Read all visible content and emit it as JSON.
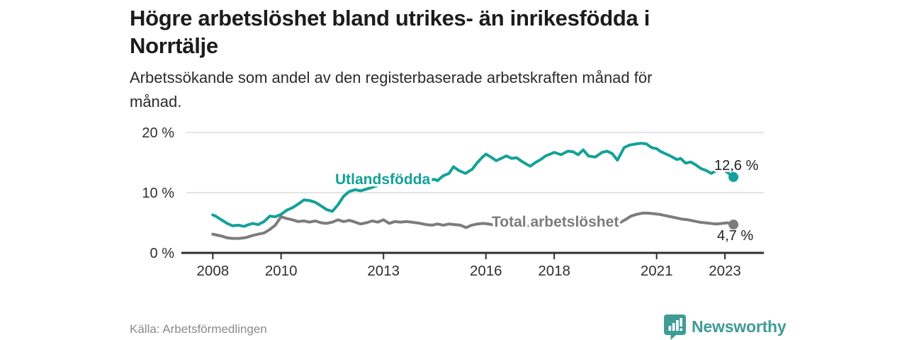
{
  "header": {
    "title": "Högre arbetslöshet bland utrikes- än inrikesfödda i\nNorrtälje",
    "subtitle": "Arbetssökande som andel av den registerbaserade arbetskraften månad för\nmånad."
  },
  "footer": {
    "source": "Källa: Arbetsförmedlingen",
    "brand": "Newsworthy",
    "brand_icon": "newsworthy-chart-pin-icon",
    "brand_color": "#3e9c95"
  },
  "colors": {
    "accent_teal": "#13a199",
    "line_gray": "#7c7c7c",
    "axis": "#2f2f2f",
    "gridline": "#dcdcdc",
    "value_label": "#222222"
  },
  "chart_data": {
    "type": "line",
    "title": "Högre arbetslöshet bland utrikes- än inrikesfödda i Norrtälje",
    "xlabel": "",
    "ylabel": "",
    "x_axis": {
      "range": [
        2007.08,
        2024.1
      ],
      "ticks": [
        "2008",
        "2010",
        "2013",
        "2016",
        "2018",
        "2021",
        "2023"
      ]
    },
    "y_axis": {
      "range": [
        0,
        21
      ],
      "ticks": [
        {
          "label": "20 %",
          "value": 20
        },
        {
          "label": "10 %",
          "value": 10
        },
        {
          "label": "0 %",
          "value": 0
        }
      ]
    },
    "grid": "horizontal-only",
    "legend": "inline-labels",
    "series": [
      {
        "name": "Utlandsfödda",
        "color": "#13a199",
        "end_label": "12,6 %",
        "end_value": 12.6,
        "points": [
          [
            2008.0,
            6.3
          ],
          [
            2008.08,
            6.1
          ],
          [
            2008.25,
            5.5
          ],
          [
            2008.42,
            4.9
          ],
          [
            2008.58,
            4.5
          ],
          [
            2008.75,
            4.6
          ],
          [
            2008.92,
            4.4
          ],
          [
            2009.0,
            4.6
          ],
          [
            2009.17,
            4.9
          ],
          [
            2009.33,
            4.7
          ],
          [
            2009.5,
            5.2
          ],
          [
            2009.67,
            6.1
          ],
          [
            2009.83,
            6.0
          ],
          [
            2010.0,
            6.4
          ],
          [
            2010.17,
            7.1
          ],
          [
            2010.33,
            7.5
          ],
          [
            2010.5,
            8.1
          ],
          [
            2010.67,
            8.8
          ],
          [
            2010.83,
            8.7
          ],
          [
            2011.0,
            8.4
          ],
          [
            2011.17,
            7.8
          ],
          [
            2011.33,
            7.2
          ],
          [
            2011.5,
            6.9
          ],
          [
            2011.67,
            8.0
          ],
          [
            2011.83,
            9.4
          ],
          [
            2012.0,
            10.2
          ],
          [
            2012.17,
            10.5
          ],
          [
            2012.33,
            10.3
          ],
          [
            2012.5,
            10.6
          ],
          [
            2012.67,
            10.9
          ],
          [
            2012.83,
            11.2
          ],
          [
            2013.0,
            11.5
          ],
          [
            2013.17,
            11.3
          ],
          [
            2013.33,
            11.7
          ],
          [
            2013.5,
            12.0
          ],
          [
            2013.67,
            12.2
          ],
          [
            2013.83,
            12.1
          ],
          [
            2014.0,
            12.4
          ],
          [
            2014.17,
            12.3
          ],
          [
            2014.33,
            12.1
          ],
          [
            2014.5,
            12.2
          ],
          [
            2014.58,
            12.0
          ],
          [
            2014.75,
            12.8
          ],
          [
            2014.92,
            13.2
          ],
          [
            2015.05,
            14.3
          ],
          [
            2015.2,
            13.7
          ],
          [
            2015.4,
            13.2
          ],
          [
            2015.6,
            13.9
          ],
          [
            2015.75,
            15.0
          ],
          [
            2015.9,
            15.9
          ],
          [
            2016.0,
            16.4
          ],
          [
            2016.15,
            15.9
          ],
          [
            2016.3,
            15.3
          ],
          [
            2016.45,
            15.7
          ],
          [
            2016.6,
            16.1
          ],
          [
            2016.75,
            15.7
          ],
          [
            2016.9,
            15.8
          ],
          [
            2017.05,
            15.2
          ],
          [
            2017.2,
            14.7
          ],
          [
            2017.3,
            14.4
          ],
          [
            2017.45,
            15.0
          ],
          [
            2017.6,
            15.5
          ],
          [
            2017.75,
            16.1
          ],
          [
            2017.92,
            16.5
          ],
          [
            2018.0,
            16.7
          ],
          [
            2018.2,
            16.3
          ],
          [
            2018.4,
            16.9
          ],
          [
            2018.55,
            16.8
          ],
          [
            2018.7,
            16.3
          ],
          [
            2018.85,
            17.1
          ],
          [
            2019.0,
            16.1
          ],
          [
            2019.2,
            15.9
          ],
          [
            2019.4,
            16.7
          ],
          [
            2019.55,
            16.9
          ],
          [
            2019.7,
            16.5
          ],
          [
            2019.85,
            15.4
          ],
          [
            2020.05,
            17.5
          ],
          [
            2020.2,
            17.9
          ],
          [
            2020.4,
            18.1
          ],
          [
            2020.55,
            18.2
          ],
          [
            2020.7,
            18.1
          ],
          [
            2020.85,
            17.5
          ],
          [
            2021.0,
            17.3
          ],
          [
            2021.1,
            16.9
          ],
          [
            2021.25,
            16.5
          ],
          [
            2021.4,
            16.1
          ],
          [
            2021.6,
            15.5
          ],
          [
            2021.7,
            15.7
          ],
          [
            2021.85,
            14.9
          ],
          [
            2022.0,
            15.1
          ],
          [
            2022.15,
            14.6
          ],
          [
            2022.3,
            14.0
          ],
          [
            2022.45,
            13.7
          ],
          [
            2022.6,
            13.2
          ],
          [
            2022.85,
            14.0
          ],
          [
            2023.0,
            13.7
          ],
          [
            2023.25,
            12.6
          ]
        ]
      },
      {
        "name": "Total arbetslöshet",
        "color": "#7c7c7c",
        "end_label": "4,7 %",
        "end_value": 4.7,
        "points": [
          [
            2008.0,
            3.1
          ],
          [
            2008.08,
            3.0
          ],
          [
            2008.25,
            2.8
          ],
          [
            2008.42,
            2.5
          ],
          [
            2008.58,
            2.4
          ],
          [
            2008.75,
            2.4
          ],
          [
            2008.92,
            2.5
          ],
          [
            2009.0,
            2.6
          ],
          [
            2009.17,
            2.9
          ],
          [
            2009.33,
            3.1
          ],
          [
            2009.5,
            3.3
          ],
          [
            2009.67,
            3.9
          ],
          [
            2009.83,
            4.6
          ],
          [
            2010.0,
            6.0
          ],
          [
            2010.17,
            5.7
          ],
          [
            2010.33,
            5.5
          ],
          [
            2010.5,
            5.2
          ],
          [
            2010.67,
            5.3
          ],
          [
            2010.83,
            5.1
          ],
          [
            2011.0,
            5.3
          ],
          [
            2011.17,
            5.0
          ],
          [
            2011.33,
            4.9
          ],
          [
            2011.5,
            5.1
          ],
          [
            2011.67,
            5.5
          ],
          [
            2011.83,
            5.2
          ],
          [
            2012.0,
            5.4
          ],
          [
            2012.17,
            5.1
          ],
          [
            2012.33,
            4.8
          ],
          [
            2012.5,
            5.0
          ],
          [
            2012.67,
            5.3
          ],
          [
            2012.83,
            5.1
          ],
          [
            2013.0,
            5.5
          ],
          [
            2013.17,
            4.9
          ],
          [
            2013.33,
            5.2
          ],
          [
            2013.5,
            5.1
          ],
          [
            2013.67,
            5.2
          ],
          [
            2013.83,
            5.1
          ],
          [
            2014.08,
            4.9
          ],
          [
            2014.25,
            4.7
          ],
          [
            2014.42,
            4.6
          ],
          [
            2014.58,
            4.8
          ],
          [
            2014.75,
            4.6
          ],
          [
            2014.92,
            4.8
          ],
          [
            2015.08,
            4.7
          ],
          [
            2015.25,
            4.6
          ],
          [
            2015.42,
            4.2
          ],
          [
            2015.58,
            4.6
          ],
          [
            2015.75,
            4.8
          ],
          [
            2015.92,
            4.9
          ],
          [
            2016.08,
            4.8
          ],
          [
            2016.25,
            4.6
          ],
          [
            2016.42,
            4.5
          ],
          [
            2016.58,
            4.7
          ],
          [
            2016.75,
            4.6
          ],
          [
            2016.92,
            4.8
          ],
          [
            2017.08,
            4.6
          ],
          [
            2017.25,
            4.5
          ],
          [
            2017.42,
            4.6
          ],
          [
            2017.58,
            4.5
          ],
          [
            2017.75,
            4.7
          ],
          [
            2017.92,
            4.8
          ],
          [
            2018.08,
            4.7
          ],
          [
            2018.25,
            4.6
          ],
          [
            2018.42,
            4.7
          ],
          [
            2018.58,
            4.5
          ],
          [
            2018.75,
            4.6
          ],
          [
            2018.92,
            4.7
          ],
          [
            2019.08,
            4.6
          ],
          [
            2019.25,
            4.7
          ],
          [
            2019.42,
            4.8
          ],
          [
            2019.58,
            4.7
          ],
          [
            2019.75,
            4.8
          ],
          [
            2019.92,
            5.0
          ],
          [
            2020.08,
            5.5
          ],
          [
            2020.25,
            6.1
          ],
          [
            2020.42,
            6.4
          ],
          [
            2020.58,
            6.6
          ],
          [
            2020.75,
            6.6
          ],
          [
            2020.92,
            6.5
          ],
          [
            2021.08,
            6.4
          ],
          [
            2021.25,
            6.2
          ],
          [
            2021.42,
            6.0
          ],
          [
            2021.58,
            5.8
          ],
          [
            2021.75,
            5.6
          ],
          [
            2021.92,
            5.5
          ],
          [
            2022.08,
            5.3
          ],
          [
            2022.25,
            5.1
          ],
          [
            2022.42,
            5.0
          ],
          [
            2022.58,
            4.9
          ],
          [
            2022.75,
            4.8
          ],
          [
            2022.92,
            4.9
          ],
          [
            2023.08,
            5.0
          ],
          [
            2023.25,
            4.7
          ]
        ]
      }
    ]
  }
}
